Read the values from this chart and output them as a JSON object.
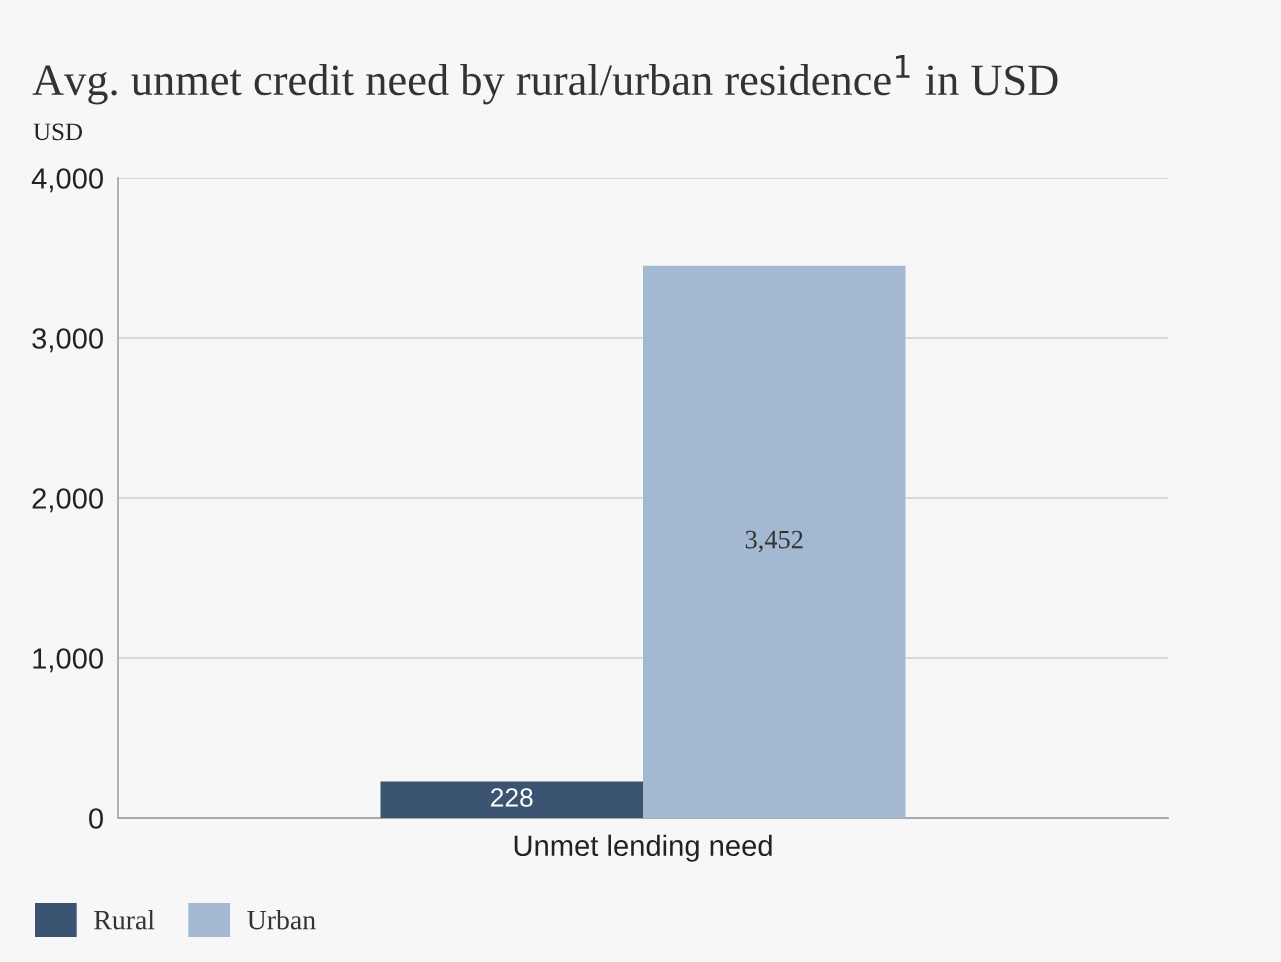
{
  "chart_data": {
    "type": "bar",
    "title": "Avg. unmet credit need by rural/urban residence$^{1}$ in USD",
    "ylabel": "USD",
    "categories": [
      "Unmet lending need"
    ],
    "series": [
      {
        "name": "Rural",
        "color": "#3a5472",
        "values": [
          228
        ],
        "value_labels": [
          "228"
        ]
      },
      {
        "name": "Urban",
        "color": "#a3b9d1",
        "values": [
          3452
        ],
        "value_labels": [
          "3,452"
        ]
      }
    ],
    "ylim": [
      0,
      4000
    ],
    "yticks": [
      {
        "value": 0,
        "label": "0"
      },
      {
        "value": 1000,
        "label": "1,000"
      },
      {
        "value": 2000,
        "label": "2,000"
      },
      {
        "value": 3000,
        "label": "3,000"
      },
      {
        "value": 4000,
        "label": "4,000"
      }
    ],
    "grid": "y",
    "legend": "bottom left"
  }
}
